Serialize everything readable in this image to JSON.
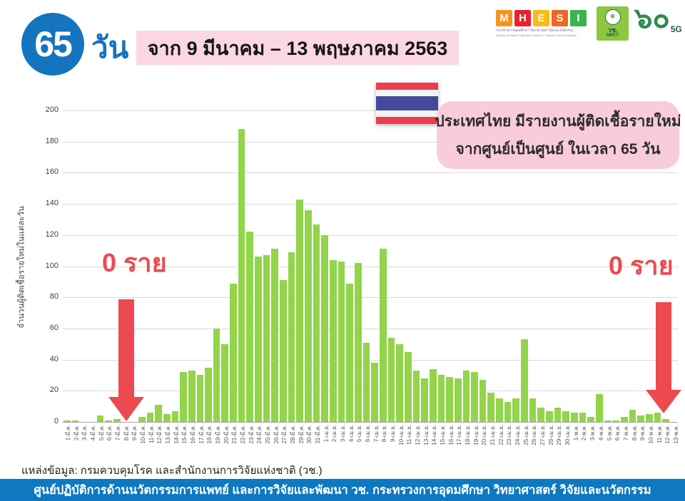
{
  "header": {
    "days_number": "65",
    "days_unit": "วัน",
    "date_range": "จาก 9 มีนาคม – 13 พฤษภาคม 2563"
  },
  "logos": {
    "mhesi": {
      "letters": [
        "M",
        "H",
        "E",
        "S",
        "I"
      ],
      "letter_colors": [
        "#f7941e",
        "#e8212e",
        "#fdb913",
        "#f26522",
        "#39b54a"
      ],
      "thai_name": "กระทรวงการอุดมศึกษา วิทยาศาสตร์ วิจัยและนวัตกรรม",
      "english_name": "Ministry of Higher Education, Science, Research and Innovation"
    },
    "nrct": {
      "emblem": "wheel-emblem",
      "thai_abbr": "วช.",
      "english_abbr": "NRCT"
    },
    "sixty_5g": {
      "thai_numerals": "๖๐",
      "suffix": "5G"
    }
  },
  "annotation": {
    "line1": "ประเทศไทย มีรายงานผู้ติดเชื้อรายใหม่",
    "line2": "จากศูนย์เป็นศูนย์ ในเวลา 65 วัน"
  },
  "zero_label_left": "0 ราย",
  "zero_label_right": "0 ราย",
  "source": "แหล่งข้อมูล: กรมควบคุมโรค และสำนักงานการวิจัยแห่งชาติ (วช.)",
  "footer": "ศูนย์ปฏิบัติการด้านนวัตกรรมการแพทย์ และการวิจัยและพัฒนา  วช.   กระทรวงการอุดมศึกษา วิทยาศาสตร์ วิจัยและนวัตกรรม",
  "colors": {
    "bar_green": "#92d44a",
    "grid_gray": "#d9d9d9",
    "accent_red": "#ec4a50",
    "circle_blue": "#1474be",
    "banner_pink": "#fbd7e2",
    "box_pink": "#f8ccd8",
    "flag_red": "#ee3d4a",
    "flag_navy": "#444a9b",
    "footer_blue": "#0e78c0",
    "nrct_green": "#8dc63f"
  },
  "chart_data": {
    "type": "bar",
    "title": "",
    "xlabel": "",
    "ylabel": "จำนวนผู้ติดเชื้อรายใหม่ในแต่ละวัน",
    "ylim": [
      0,
      200
    ],
    "ytick_interval": 20,
    "grid": true,
    "legend": false,
    "bar_color": "#92d44a",
    "categories": [
      "1-มี.ค.",
      "2-มี.ค.",
      "3-มี.ค.",
      "4-มี.ค.",
      "5-มี.ค.",
      "6-มี.ค.",
      "7-มี.ค.",
      "8-มี.ค.",
      "9-มี.ค.",
      "10-มี.ค.",
      "11-มี.ค.",
      "12-มี.ค.",
      "13-มี.ค.",
      "14-มี.ค.",
      "15-มี.ค.",
      "16-มี.ค.",
      "17-มี.ค.",
      "18-มี.ค.",
      "19-มี.ค.",
      "20-มี.ค.",
      "21-มี.ค.",
      "22-มี.ค.",
      "23-มี.ค.",
      "24-มี.ค.",
      "25-มี.ค.",
      "26-มี.ค.",
      "27-มี.ค.",
      "28-มี.ค.",
      "29-มี.ค.",
      "30-มี.ค.",
      "31-มี.ค.",
      "1-เม.ย.",
      "2-เม.ย.",
      "3-เม.ย.",
      "4-เม.ย.",
      "5-เม.ย.",
      "6-เม.ย.",
      "7-เม.ย.",
      "8-เม.ย.",
      "9-เม.ย.",
      "10-เม.ย.",
      "11-เม.ย.",
      "12-เม.ย.",
      "13-เม.ย.",
      "14-เม.ย.",
      "15-เม.ย.",
      "16-เม.ย.",
      "17-เม.ย.",
      "18-เม.ย.",
      "19-เม.ย.",
      "20-เม.ย.",
      "21-เม.ย.",
      "22-เม.ย.",
      "23-เม.ย.",
      "24-เม.ย.",
      "25-เม.ย.",
      "26-เม.ย.",
      "27-เม.ย.",
      "28-เม.ย.",
      "29-เม.ย.",
      "30-เม.ย.",
      "1-พ.ค.",
      "2-พ.ค.",
      "3-พ.ค.",
      "4-พ.ค.",
      "5-พ.ค.",
      "6-พ.ค.",
      "7-พ.ค.",
      "8-พ.ค.",
      "9-พ.ค.",
      "10-พ.ค.",
      "11-พ.ค.",
      "12-พ.ค.",
      "13-พ.ค."
    ],
    "values": [
      1,
      1,
      0,
      0,
      4,
      1,
      2,
      0,
      0,
      3,
      6,
      11,
      5,
      7,
      32,
      33,
      30,
      35,
      60,
      50,
      89,
      188,
      122,
      106,
      107,
      111,
      91,
      109,
      143,
      136,
      127,
      120,
      104,
      103,
      89,
      102,
      51,
      38,
      111,
      54,
      50,
      45,
      33,
      28,
      34,
      30,
      29,
      28,
      33,
      32,
      27,
      19,
      15,
      13,
      15,
      53,
      15,
      9,
      7,
      9,
      7,
      6,
      6,
      3,
      18,
      1,
      1,
      3,
      8,
      4,
      5,
      6,
      2,
      0
    ],
    "annotations": [
      {
        "text": "0 ราย",
        "arrow_points_to": "9-มี.ค.",
        "value": 0
      },
      {
        "text": "0 ราย",
        "arrow_points_to": "13-พ.ค.",
        "value": 0
      }
    ]
  }
}
